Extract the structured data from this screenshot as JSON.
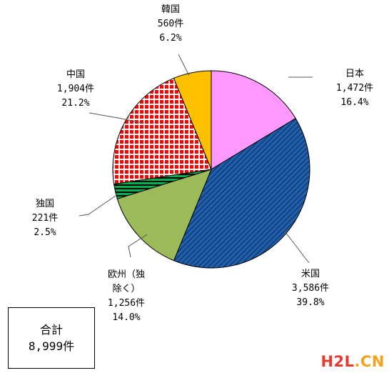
{
  "chart_data": {
    "type": "pie",
    "start_angle_deg": 0,
    "direction": "clockwise",
    "slices": [
      {
        "name": "日本",
        "lines": [
          "日本",
          "1,472件",
          "16.4%"
        ],
        "count": 1472,
        "percent": 16.4,
        "color": "#ff99ff",
        "pattern": "solid"
      },
      {
        "name": "米国",
        "lines": [
          "米国",
          "3,586件",
          "39.8%"
        ],
        "count": 3586,
        "percent": 39.8,
        "color": "#1f5fae",
        "pattern": "diagonal-stripes"
      },
      {
        "name": "欧州（独除く）",
        "lines": [
          "欧州（独",
          "除く）",
          "1,256件",
          "14.0%"
        ],
        "count": 1256,
        "percent": 14.0,
        "color": "#9bbb59",
        "pattern": "solid"
      },
      {
        "name": "独国",
        "lines": [
          "独国",
          "221件",
          "2.5%"
        ],
        "count": 221,
        "percent": 2.5,
        "color": "#00b050",
        "pattern": "horizontal-stripes"
      },
      {
        "name": "中国",
        "lines": [
          "中国",
          "1,904件",
          "21.2%"
        ],
        "count": 1904,
        "percent": 21.2,
        "color": "#ff0000",
        "pattern": "grid"
      },
      {
        "name": "韓国",
        "lines": [
          "韓国",
          "560件",
          "6.2%"
        ],
        "count": 560,
        "percent": 6.2,
        "color": "#ffc000",
        "pattern": "solid"
      }
    ],
    "total": {
      "lines": [
        "合計",
        "8,999件"
      ],
      "value": 8999
    }
  },
  "watermark": {
    "part1": "H2L",
    "part2": ".CN"
  }
}
